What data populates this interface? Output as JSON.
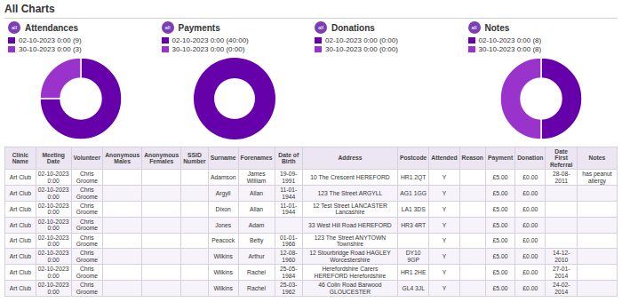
{
  "title": "All Charts",
  "chart_data": [
    {
      "type": "pie",
      "title": "Attendances",
      "annotations": [
        "all"
      ],
      "categories": [
        "02-10-2023 0:00 (9)",
        "30-10-2023 0:00 (3)"
      ],
      "values": [
        75,
        25
      ],
      "colors": [
        "#6600aa",
        "#9933cc"
      ]
    },
    {
      "type": "pie",
      "title": "Payments",
      "annotations": [
        "all"
      ],
      "categories": [
        "02-10-2023 0:00 (40:00)",
        "30-10-2023 0:00 (0:00)"
      ],
      "values": [
        100,
        0
      ],
      "colors": [
        "#6600aa",
        "#9933cc"
      ]
    },
    {
      "type": "pie",
      "title": "Donations",
      "annotations": [
        "all"
      ],
      "categories": [
        "02-10-2023 0:00 (0:00)",
        "30-10-2023 0:00 (0:00)"
      ],
      "values": [
        0,
        0
      ],
      "colors": [
        "#6600aa",
        "#9933cc"
      ]
    },
    {
      "type": "pie",
      "title": "Notes",
      "annotations": [
        "all"
      ],
      "categories": [
        "02-10-2023 0:00 (8)",
        "30-10-2023 0:00 (8)"
      ],
      "values": [
        50,
        50
      ],
      "colors": [
        "#6600aa",
        "#9933cc"
      ]
    },
    {
      "type": "table",
      "columns": [
        "Clinic Name",
        "Meeting Date",
        "Volunteer",
        "Anonymous\nMales",
        "Anonymous\nFemales",
        "SSID\nNumber",
        "Surname",
        "Forenames",
        "Date of\nBirth",
        "Address",
        "Postcode",
        "Attended",
        "Reason",
        "Payment",
        "Donation",
        "Date First\nReferral",
        "Notes"
      ],
      "rows": [
        [
          "Art Club",
          "02-10-2023\n0:00",
          "Chris\nGroome",
          "",
          "",
          "",
          "Adamson",
          "James\nWilliam",
          "19-09-1991",
          "10 The Crescent HEREFORD",
          "HR1 2QT",
          "Y",
          "",
          "£5.00",
          "£0.00",
          "28-08-2011",
          "has peanut allergy"
        ],
        [
          "Art Club",
          "02-10-2023\n0:00",
          "Chris\nGroome",
          "",
          "",
          "",
          "Argyll",
          "Allan",
          "11-01-1944",
          "123 The Street ARGYLL",
          "AG1 1GG",
          "Y",
          "",
          "£5.00",
          "£0.00",
          "",
          ""
        ],
        [
          "Art Club",
          "02-10-2023\n0:00",
          "Chris\nGroome",
          "",
          "",
          "",
          "Dixon",
          "Allan",
          "11-01-1944",
          "12 Test Street LANCASTER Lancashire",
          "LA1 3DS",
          "Y",
          "",
          "£5.00",
          "£0.00",
          "",
          ""
        ],
        [
          "Art Club",
          "02-10-2023\n0:00",
          "Chris\nGroome",
          "",
          "",
          "",
          "Jones",
          "Adam",
          "",
          "33 West Hill Road HEREFORD",
          "HR3 4RT",
          "Y",
          "",
          "£5.00",
          "£0.00",
          "",
          ""
        ],
        [
          "Art Club",
          "02-10-2023\n0:00",
          "Chris\nGroome",
          "",
          "",
          "",
          "Peacock",
          "Betty",
          "01-01-1966",
          "123 The Street ANYTOWN Townshire",
          "",
          "Y",
          "",
          "£5.00",
          "£0.00",
          "",
          ""
        ],
        [
          "Art Club",
          "02-10-2023\n0:00",
          "Chris\nGroome",
          "",
          "",
          "",
          "Wilkins",
          "Arthur",
          "12-08-1960",
          "12 Stourbridge Road HAGLEY Worcestershire",
          "DY10\n9GP",
          "Y",
          "",
          "£5.00",
          "£0.00",
          "14-12-2010",
          ""
        ],
        [
          "Art Club",
          "02-10-2023\n0:00",
          "Chris\nGroome",
          "",
          "",
          "",
          "Wilkins",
          "Rachel",
          "25-05-1984",
          "Herefordshire Carers HEREFORD Herefordshire",
          "HR1 2HE",
          "Y",
          "",
          "£5.00",
          "£0.00",
          "27-01-2014",
          ""
        ],
        [
          "Art Club",
          "02-10-2023\n0:00",
          "Chris\nGroome",
          "",
          "",
          "",
          "Wilkins",
          "Rachel",
          "25-03-1962",
          "46 Colin Road Barwood GLOUCESTER",
          "GL4 3JL",
          "Y",
          "",
          "£5.00",
          "£0.00",
          "24-02-2014",
          ""
        ]
      ]
    }
  ]
}
